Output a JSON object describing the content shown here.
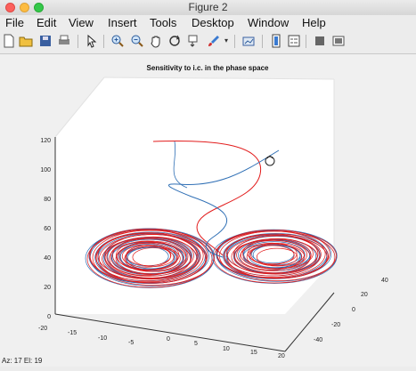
{
  "window": {
    "title": "Figure 2"
  },
  "menu": [
    "File",
    "Edit",
    "View",
    "Insert",
    "Tools",
    "Desktop",
    "Window",
    "Help"
  ],
  "toolbar_icons": [
    "new-figure-icon",
    "open-file-icon",
    "save-icon",
    "print-icon",
    "pointer-icon",
    "zoom-in-icon",
    "zoom-out-icon",
    "pan-icon",
    "rotate-3d-icon",
    "data-cursor-icon",
    "brush-icon",
    "dropdown-arrow-icon",
    "link-plot-icon",
    "colorbar-icon",
    "legend-icon",
    "hide-plot-tools-icon",
    "show-plot-tools-icon"
  ],
  "plot": {
    "title": "Sensitivity to i.c. in the phase space",
    "z_ticks": [
      "0",
      "20",
      "40",
      "60",
      "80",
      "100",
      "120"
    ],
    "x_ticks": [
      "-20",
      "-15",
      "-10",
      "-5",
      "0",
      "5",
      "10",
      "15",
      "20"
    ],
    "y_ticks": [
      "-40",
      "-20",
      "0",
      "20",
      "40"
    ]
  },
  "colors": {
    "series_red": "#e21b1b",
    "series_blue": "#2f6fb5"
  },
  "status": {
    "text": "Az: 17 El: 19"
  }
}
